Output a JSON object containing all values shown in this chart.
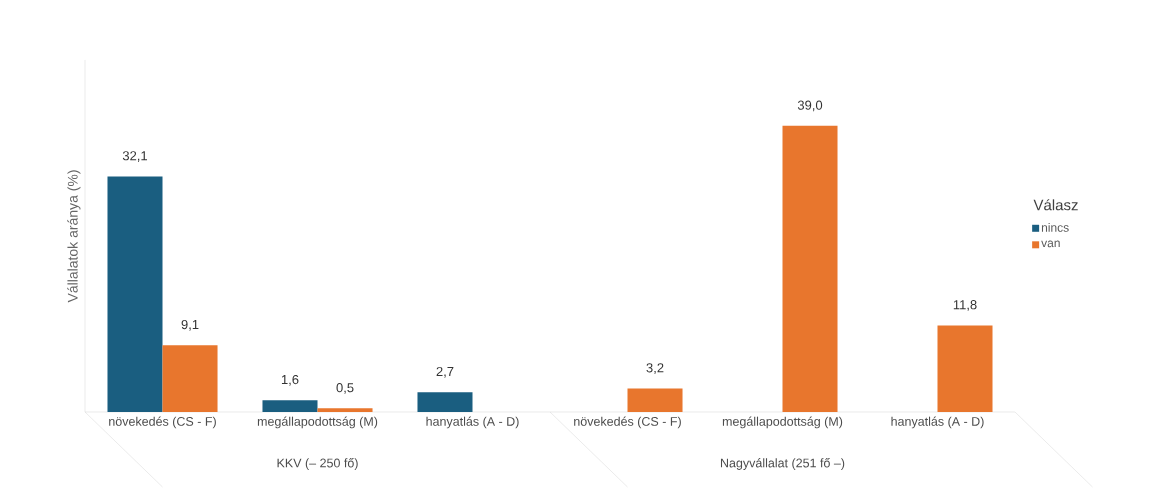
{
  "chart_data": {
    "type": "bar",
    "ylabel": "Vállalatok aránya (%)",
    "legend_title": "Válasz",
    "legend": "right",
    "categories": [
      "növekedés (CS - F)",
      "megállapodottság (M)",
      "hanyatlás (A - D)",
      "növekedés (CS - F)",
      "megállapodottság (M)",
      "hanyatlás (A - D)"
    ],
    "series": [
      {
        "name": "nincs",
        "color": "#1a5e80",
        "values": [
          32.1,
          1.6,
          2.7,
          null,
          null,
          null
        ],
        "value_labels": [
          "32,1",
          "1,6",
          "2,7",
          null,
          null,
          null
        ]
      },
      {
        "name": "van",
        "color": "#e8762d",
        "values": [
          9.1,
          0.5,
          null,
          3.2,
          39.0,
          11.8
        ],
        "value_labels": [
          "9,1",
          "0,5",
          null,
          "3,2",
          "39,0",
          "11,8"
        ]
      }
    ],
    "annotations": [
      "KKV (– 250 fő)",
      "Nagyvállalat (251 fő –)"
    ]
  }
}
